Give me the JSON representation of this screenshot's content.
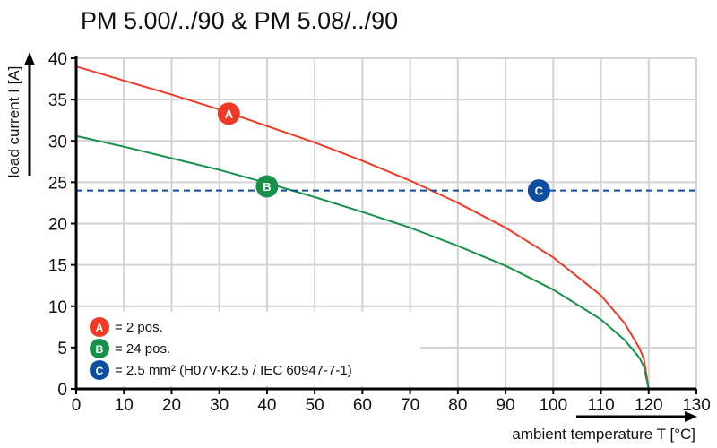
{
  "chart_data": {
    "type": "line",
    "title": "PM 5.00/../90 & PM 5.08/../90",
    "xlabel": "ambient temperature T [°C]",
    "ylabel": "load current I [A]",
    "xlim": [
      0,
      130
    ],
    "ylim": [
      0,
      40
    ],
    "xticks": [
      0,
      10,
      20,
      30,
      40,
      50,
      60,
      70,
      80,
      90,
      100,
      110,
      120,
      130
    ],
    "yticks": [
      0,
      5,
      10,
      15,
      20,
      25,
      30,
      35,
      40
    ],
    "grid": true,
    "legend_position": "bottom-left",
    "series": [
      {
        "label": "A",
        "legend_text": "= 2 pos.",
        "color": "#f03a25",
        "style": "solid",
        "x": [
          0,
          10,
          20,
          30,
          40,
          50,
          60,
          70,
          80,
          90,
          100,
          110,
          115,
          118,
          119,
          120
        ],
        "y": [
          39,
          37.3,
          35.6,
          33.8,
          31.8,
          29.8,
          27.6,
          25.2,
          22.5,
          19.5,
          15.9,
          11.3,
          7.9,
          5.0,
          3.6,
          0
        ],
        "marker_at": [
          32,
          33.3
        ]
      },
      {
        "label": "B",
        "legend_text": "= 24 pos.",
        "color": "#17904a",
        "style": "solid",
        "x": [
          0,
          10,
          20,
          30,
          40,
          50,
          60,
          70,
          80,
          90,
          100,
          110,
          115,
          118,
          119,
          120
        ],
        "y": [
          30.6,
          29.3,
          27.9,
          26.5,
          24.9,
          23.2,
          21.4,
          19.5,
          17.3,
          14.9,
          12.0,
          8.4,
          5.9,
          3.8,
          2.7,
          0
        ],
        "marker_at": [
          40,
          24.5
        ]
      },
      {
        "label": "C",
        "legend_text": "= 2.5 mm² (H07V-K2.5 / IEC 60947-7-1)",
        "color": "#0d4ea1",
        "style": "dashed",
        "x": [
          0,
          130
        ],
        "y": [
          24,
          24
        ],
        "marker_at": [
          97,
          24
        ]
      }
    ]
  }
}
